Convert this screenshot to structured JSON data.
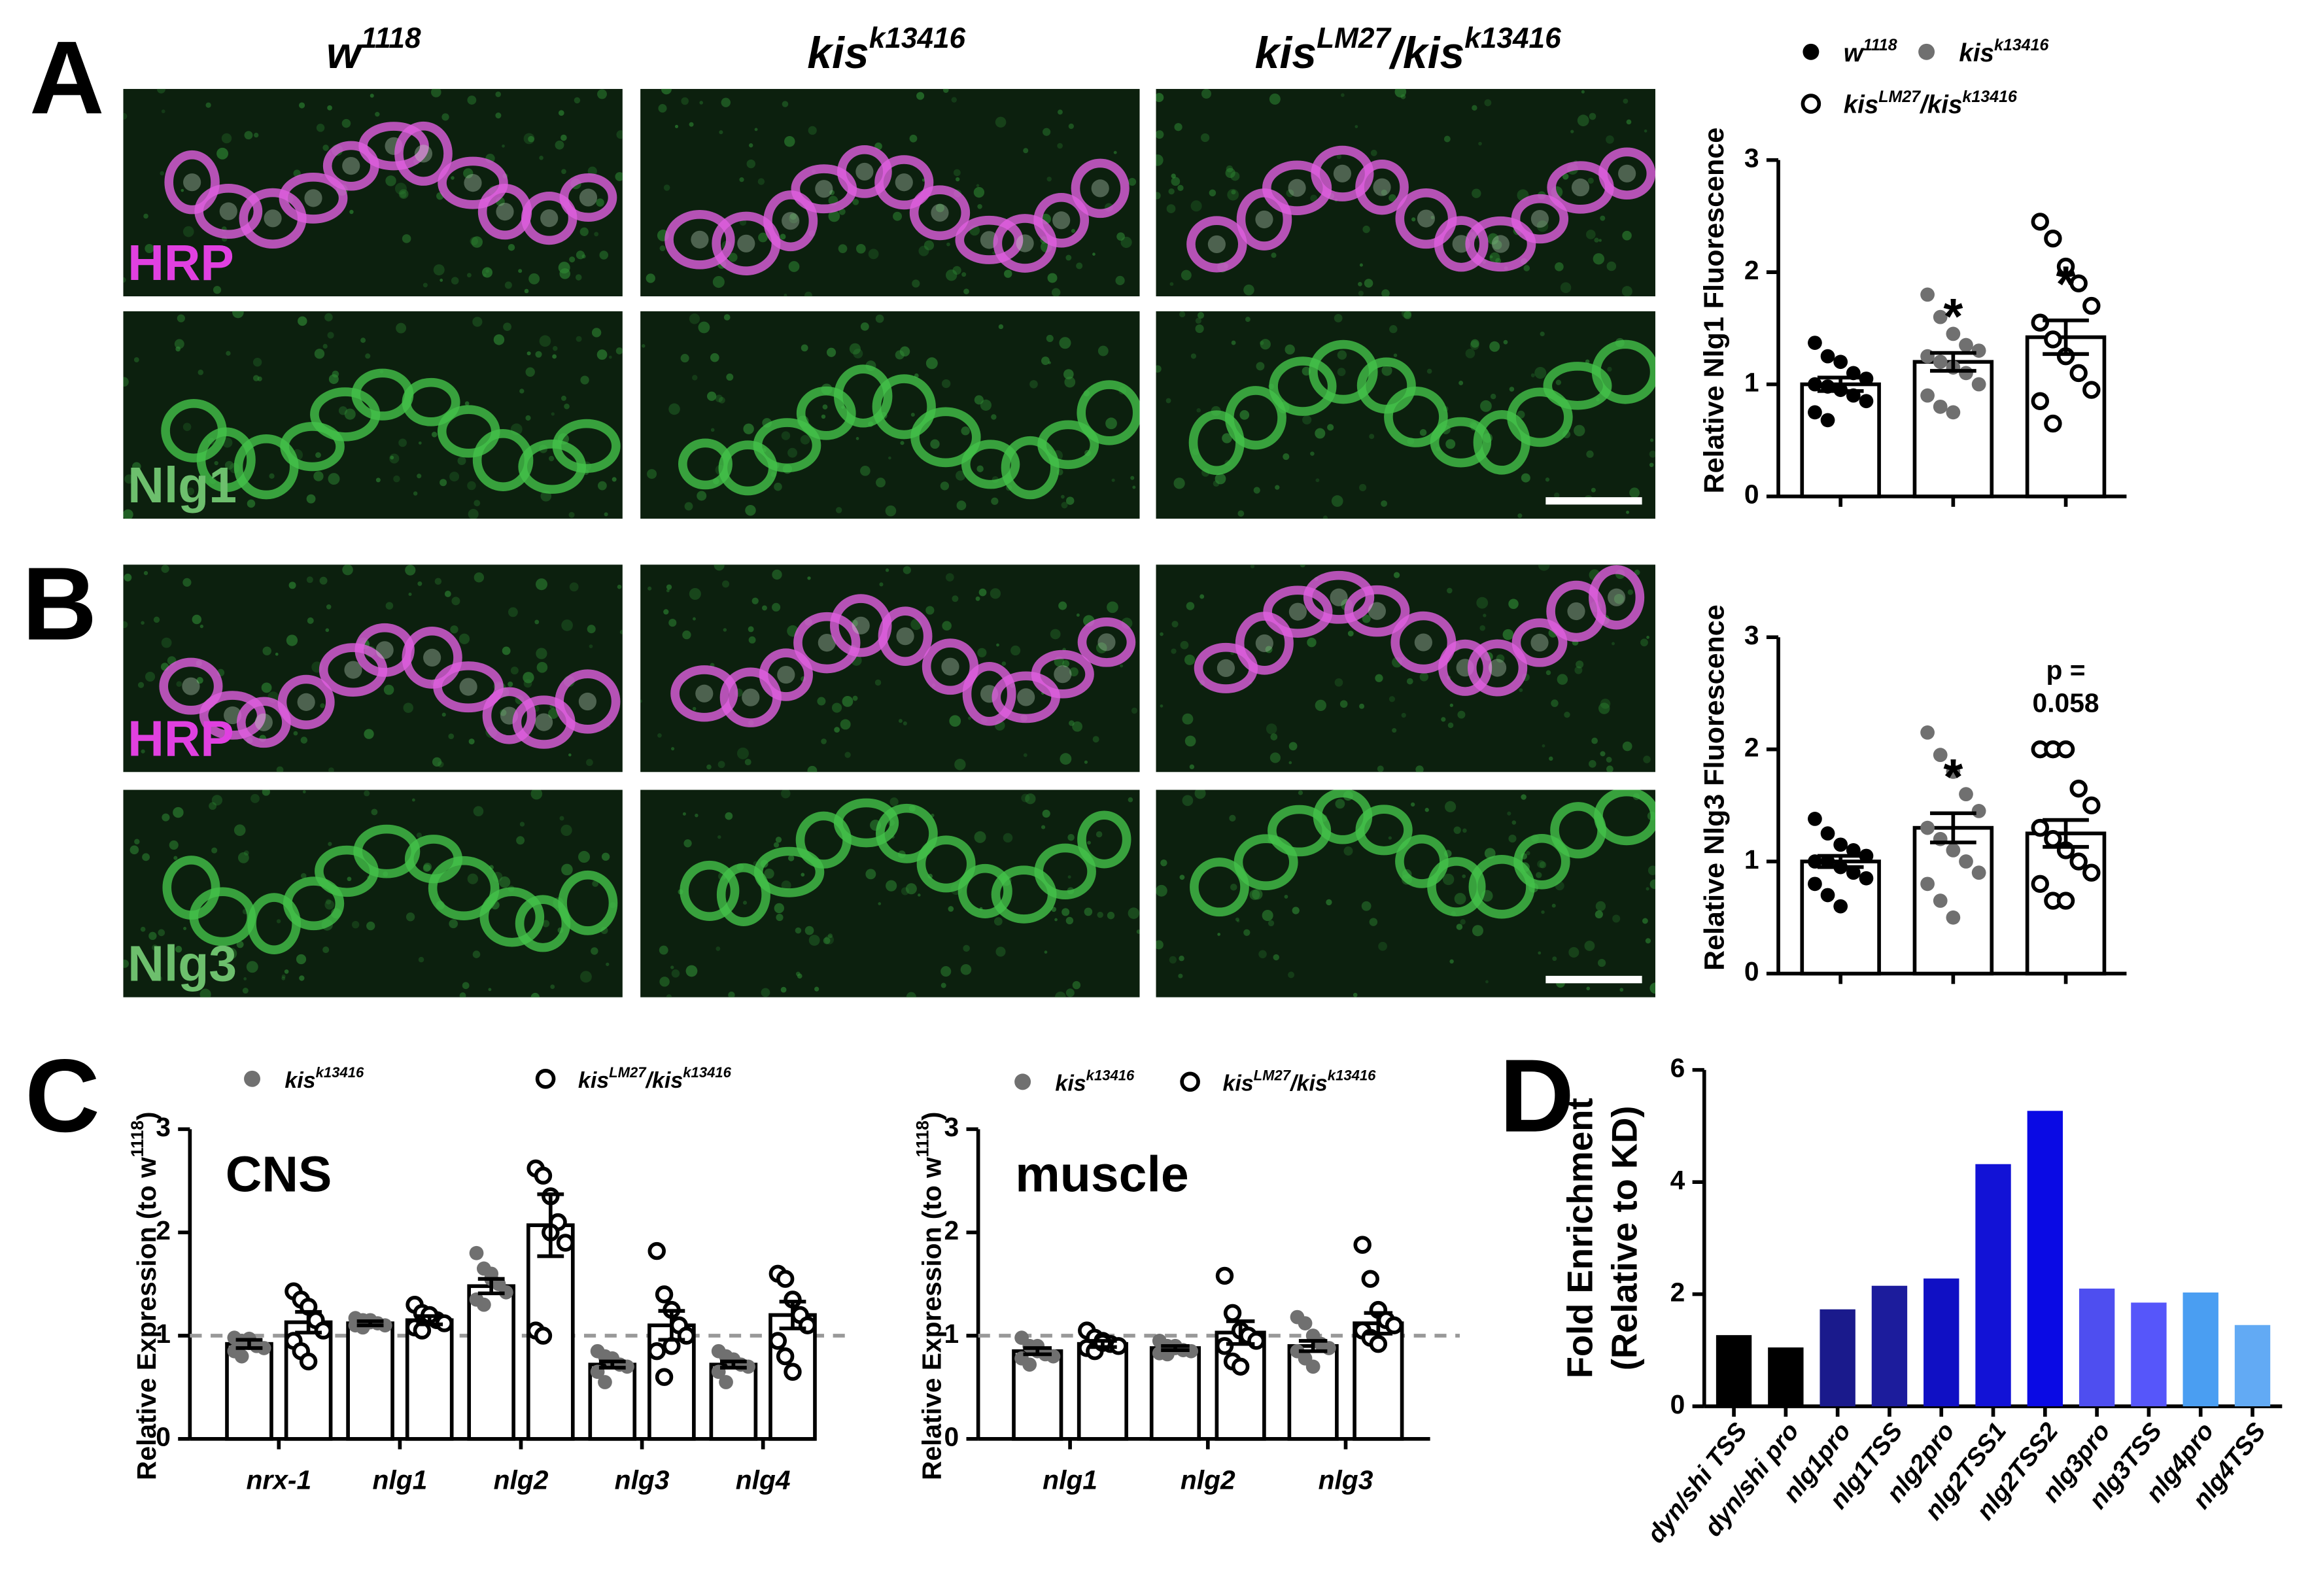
{
  "panel_labels": [
    "A",
    "B",
    "C",
    "D"
  ],
  "image_columns": [
    [
      "w",
      "1118"
    ],
    [
      "kis",
      "k13416"
    ],
    [
      "kis",
      "LM27",
      "/kis",
      "k13416"
    ]
  ],
  "image_rows": [
    "HRP",
    "Nlg1",
    "HRP",
    "Nlg3"
  ],
  "chart_data": [
    {
      "type": "dotbar",
      "ylabel": "Relative Nlg1 Fluorescence",
      "ylim": [
        0,
        3
      ],
      "yticks": [
        0,
        1,
        2,
        3
      ],
      "legend": "top",
      "series": [
        {
          "name": [
            "w",
            "1118"
          ],
          "color": "#000000",
          "marker": "filled",
          "values": [
            1.0
          ],
          "errors": [
            0.06
          ],
          "points": [
            [
              1.37,
              1.25,
              1.2,
              1.1,
              1.05,
              1.0,
              0.98,
              0.95,
              0.9,
              0.85,
              0.75,
              0.68
            ]
          ]
        },
        {
          "name": [
            "kis",
            "k13416"
          ],
          "color": "#707070",
          "marker": "filled",
          "values": [
            1.2
          ],
          "errors": [
            0.08
          ],
          "annotation": [
            "*"
          ],
          "points": [
            [
              1.8,
              1.6,
              1.45,
              1.35,
              1.3,
              1.25,
              1.2,
              1.15,
              1.1,
              1.0,
              0.9,
              0.8,
              0.75
            ]
          ]
        },
        {
          "name": [
            "kis",
            "LM27",
            "/kis",
            "k13416"
          ],
          "color": "#000000",
          "marker": "open",
          "values": [
            1.42
          ],
          "errors": [
            0.15
          ],
          "annotation": [
            "*"
          ],
          "points": [
            [
              2.45,
              2.3,
              2.05,
              1.9,
              1.7,
              1.55,
              1.4,
              1.25,
              1.1,
              0.95,
              0.85,
              0.65
            ]
          ]
        }
      ]
    },
    {
      "type": "dotbar",
      "ylabel": "Relative Nlg3 Fluorescence",
      "ylim": [
        0,
        3
      ],
      "yticks": [
        0,
        1,
        2,
        3
      ],
      "series": [
        {
          "color": "#000000",
          "marker": "filled",
          "values": [
            1.0
          ],
          "errors": [
            0.05
          ],
          "points": [
            [
              1.38,
              1.25,
              1.15,
              1.1,
              1.05,
              1.0,
              1.0,
              0.95,
              0.9,
              0.85,
              0.8,
              0.7,
              0.6
            ]
          ]
        },
        {
          "color": "#707070",
          "marker": "filled",
          "values": [
            1.3
          ],
          "errors": [
            0.13
          ],
          "annotation": [
            "*"
          ],
          "points": [
            [
              2.15,
              1.95,
              1.8,
              1.6,
              1.45,
              1.3,
              1.2,
              1.1,
              1.0,
              0.9,
              0.8,
              0.65,
              0.5
            ]
          ]
        },
        {
          "color": "#000000",
          "marker": "open",
          "values": [
            1.25
          ],
          "errors": [
            0.12
          ],
          "annotation": [
            "p =",
            "0.058"
          ],
          "points": [
            [
              2.0,
              2.0,
              2.0,
              1.65,
              1.5,
              1.3,
              1.2,
              1.1,
              1.0,
              0.9,
              0.8,
              0.65,
              0.65
            ]
          ]
        }
      ]
    },
    {
      "type": "dotbar",
      "label": "CNS",
      "ylabel": [
        "Relative Expression (to w",
        "1118",
        ")"
      ],
      "categories": [
        "nrx-1",
        "nlg1",
        "nlg2",
        "nlg3",
        "nlg4"
      ],
      "ylim": [
        0,
        3
      ],
      "yticks": [
        0,
        1,
        2,
        3
      ],
      "reference_line": 1,
      "legend": "top",
      "series": [
        {
          "name": [
            "kis",
            "k13416"
          ],
          "color": "#707070",
          "marker": "filled",
          "values": [
            0.92,
            1.12,
            1.48,
            0.72,
            0.72
          ],
          "errors": [
            0.04,
            0.02,
            0.07,
            0.03,
            0.03
          ],
          "points": [
            [
              0.98,
              0.95,
              0.93,
              0.9,
              0.88,
              0.85,
              0.8,
              0.97
            ],
            [
              1.17,
              1.15,
              1.13,
              1.12,
              1.1,
              1.1,
              1.08,
              1.15
            ],
            [
              1.8,
              1.65,
              1.6,
              1.5,
              1.42,
              1.35,
              1.3,
              1.55
            ],
            [
              0.85,
              0.8,
              0.75,
              0.72,
              0.7,
              0.65,
              0.55,
              0.78
            ],
            [
              0.85,
              0.8,
              0.77,
              0.72,
              0.7,
              0.65,
              0.55,
              0.75
            ]
          ]
        },
        {
          "name": [
            "kis",
            "LM27",
            "/kis",
            "k13416"
          ],
          "color": "#000000",
          "marker": "open",
          "values": [
            1.13,
            1.15,
            2.07,
            1.1,
            1.2
          ],
          "errors": [
            0.1,
            0.04,
            0.3,
            0.14,
            0.13
          ],
          "points": [
            [
              1.43,
              1.35,
              1.28,
              1.15,
              1.05,
              0.95,
              0.85,
              0.75
            ],
            [
              1.3,
              1.22,
              1.18,
              1.15,
              1.12,
              1.08,
              1.05,
              1.2
            ],
            [
              2.62,
              2.55,
              2.35,
              2.1,
              1.9,
              1.05,
              1.0,
              2.0
            ],
            [
              1.82,
              1.4,
              1.25,
              1.1,
              1.0,
              0.85,
              0.6,
              0.9
            ],
            [
              1.6,
              1.55,
              1.35,
              1.2,
              1.1,
              0.95,
              0.8,
              0.65
            ]
          ]
        }
      ]
    },
    {
      "type": "dotbar",
      "label": "muscle",
      "ylabel": [
        "Relative Expression (to w",
        "1118",
        ")"
      ],
      "categories": [
        "nlg1",
        "nlg2",
        "nlg3"
      ],
      "ylim": [
        0,
        3
      ],
      "yticks": [
        0,
        1,
        2,
        3
      ],
      "reference_line": 1,
      "legend": "top",
      "series": [
        {
          "name": [
            "kis",
            "k13416"
          ],
          "color": "#707070",
          "marker": "filled",
          "values": [
            0.85,
            0.88,
            0.9
          ],
          "errors": [
            0.03,
            0.02,
            0.05
          ],
          "points": [
            [
              0.98,
              0.9,
              0.85,
              0.82,
              0.8,
              0.78,
              0.72,
              0.9
            ],
            [
              0.95,
              0.9,
              0.88,
              0.86,
              0.85,
              0.83,
              0.82,
              0.9
            ],
            [
              1.18,
              1.12,
              1.0,
              0.92,
              0.88,
              0.85,
              0.78,
              0.7
            ]
          ]
        },
        {
          "name": [
            "kis",
            "LM27",
            "/kis",
            "k13416"
          ],
          "color": "#000000",
          "marker": "open",
          "values": [
            0.92,
            1.03,
            1.12
          ],
          "errors": [
            0.03,
            0.11,
            0.1
          ],
          "points": [
            [
              1.05,
              0.98,
              0.95,
              0.92,
              0.9,
              0.88,
              0.85,
              0.93
            ],
            [
              1.58,
              1.22,
              1.05,
              1.0,
              0.95,
              0.9,
              0.75,
              0.7
            ],
            [
              1.88,
              1.55,
              1.25,
              1.15,
              1.1,
              1.05,
              0.98,
              0.92
            ]
          ]
        }
      ]
    },
    {
      "type": "bar",
      "ylabel": [
        "Fold Enrichment",
        "(Relative to KD)"
      ],
      "categories": [
        "dyn/shi TSS",
        "dyn/shi pro",
        "nlg1pro",
        "nlg1TSS",
        "nlg2pro",
        "nlg2TSS1",
        "nlg2TSS2",
        "nlg3pro",
        "nlg3TSS",
        "nlg4pro",
        "nlg4TSS"
      ],
      "values": [
        1.27,
        1.05,
        1.73,
        2.15,
        2.28,
        4.32,
        5.27,
        2.1,
        1.85,
        2.03,
        1.45
      ],
      "colors": [
        "#000000",
        "#000000",
        "#1a1a8c",
        "#1c1c9c",
        "#1010c4",
        "#1212d6",
        "#0a0ae4",
        "#4e4ef0",
        "#5656fa",
        "#4a9ef2",
        "#62aaf4"
      ],
      "ylim": [
        0,
        6
      ],
      "yticks": [
        0,
        2,
        4,
        6
      ]
    }
  ]
}
